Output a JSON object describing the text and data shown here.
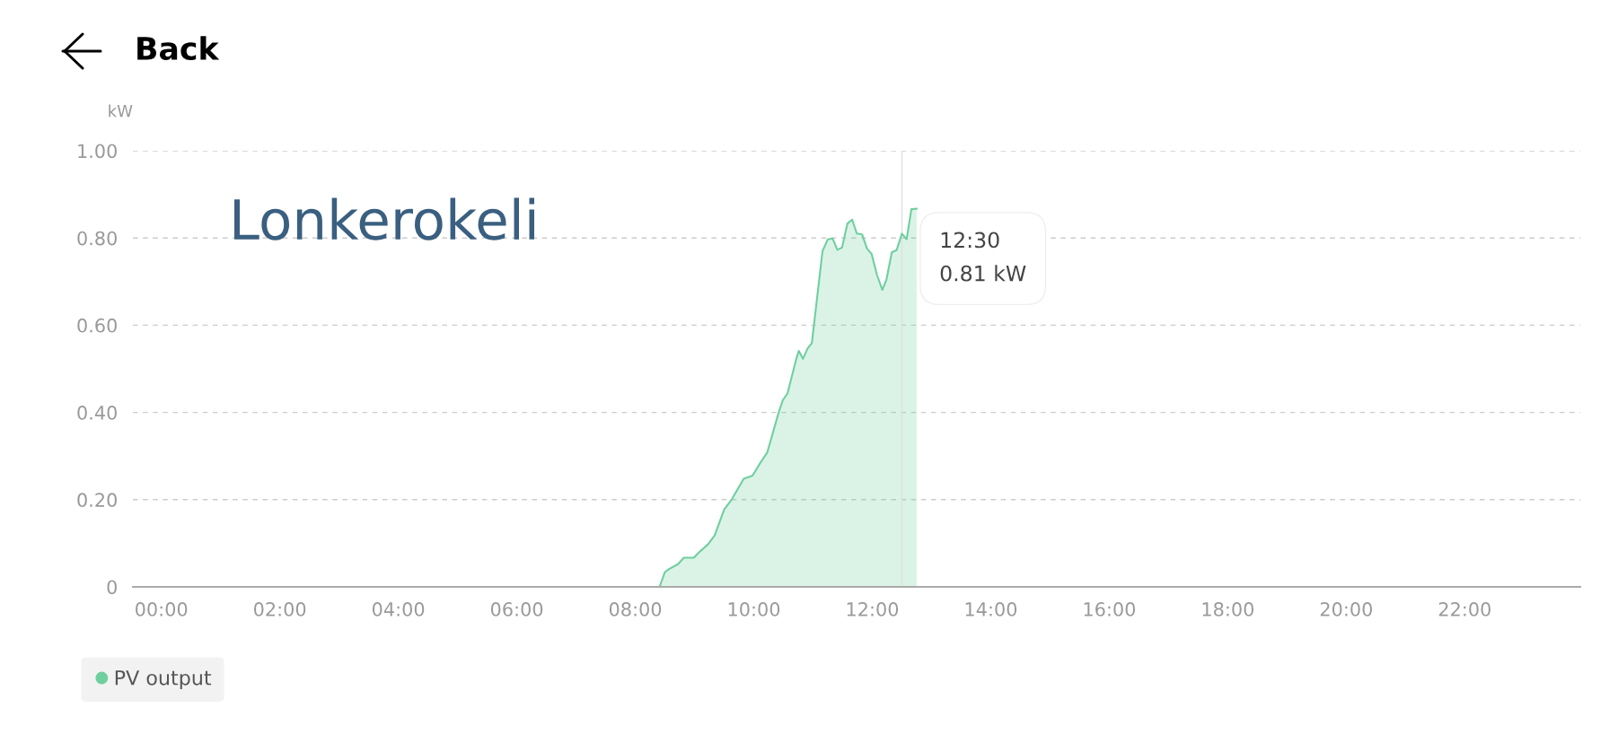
{
  "chart_data": {
    "type": "area",
    "ylabel": "kW",
    "annotations": [
      "Back",
      "Lonkerokeli",
      {
        "text": "12:30\n0.81 kW",
        "x": 12.5,
        "y": 0.81
      }
    ],
    "series": [
      {
        "name": "PV output",
        "color": "#6fcf9f",
        "x": [
          7.94,
          8.41,
          8.5,
          8.57,
          8.72,
          8.82,
          8.99,
          9.06,
          9.23,
          9.34,
          9.5,
          9.63,
          9.83,
          9.98,
          10.09,
          10.23,
          10.42,
          10.49,
          10.57,
          10.72,
          10.76,
          10.83,
          10.91,
          10.98,
          11.16,
          11.25,
          11.33,
          11.41,
          11.49,
          11.58,
          11.66,
          11.74,
          11.83,
          11.91,
          11.99,
          12.08,
          12.17,
          12.24,
          12.33,
          12.41,
          12.5,
          12.58,
          12.66,
          12.75
        ],
        "values": [
          0,
          0,
          0.034,
          0.041,
          0.052,
          0.067,
          0.067,
          0.077,
          0.098,
          0.118,
          0.177,
          0.201,
          0.248,
          0.255,
          0.28,
          0.309,
          0.4,
          0.428,
          0.444,
          0.524,
          0.541,
          0.523,
          0.547,
          0.559,
          0.77,
          0.797,
          0.799,
          0.773,
          0.778,
          0.833,
          0.842,
          0.81,
          0.808,
          0.776,
          0.763,
          0.715,
          0.681,
          0.705,
          0.767,
          0.772,
          0.81,
          0.797,
          0.866,
          0.867
        ]
      }
    ],
    "xlim": [
      -0.48,
      23.95
    ],
    "xticks": [
      {
        "value": 0,
        "label": "00:00"
      },
      {
        "value": 2,
        "label": "02:00"
      },
      {
        "value": 4,
        "label": "04:00"
      },
      {
        "value": 6,
        "label": "06:00"
      },
      {
        "value": 8,
        "label": "08:00"
      },
      {
        "value": 10,
        "label": "10:00"
      },
      {
        "value": 12,
        "label": "12:00"
      },
      {
        "value": 14,
        "label": "14:00"
      },
      {
        "value": 16,
        "label": "16:00"
      },
      {
        "value": 18,
        "label": "18:00"
      },
      {
        "value": 20,
        "label": "20:00"
      },
      {
        "value": 22,
        "label": "22:00"
      }
    ],
    "ylim": [
      0,
      1.0
    ],
    "yticks": [
      0,
      {
        "value": 0.2,
        "label": "0.20"
      },
      {
        "value": 0.4,
        "label": "0.40"
      },
      {
        "value": 0.6,
        "label": "0.60"
      },
      {
        "value": 0.8,
        "label": "0.80"
      },
      {
        "value": 1.0,
        "label": "1.00"
      }
    ],
    "ref_lines": [
      {
        "axis": "x",
        "value": 12.5,
        "color": "#e0e0e0"
      }
    ],
    "grid": "y",
    "legend": "bottom left",
    "line_style": "solid",
    "marker": "none"
  }
}
